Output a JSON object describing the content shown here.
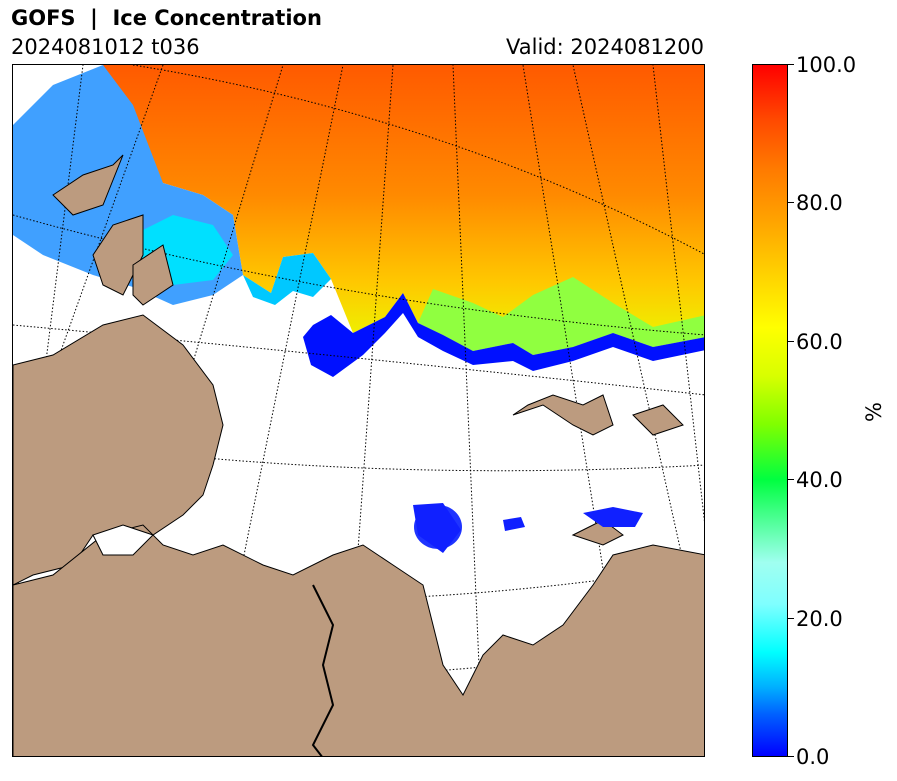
{
  "header": {
    "title": "GOFS  |  Ice Concentration",
    "init_lead": "2024081012 t036",
    "valid": "Valid: 2024081200"
  },
  "colorbar": {
    "unit": "%",
    "ticks": [
      "0.0",
      "20.0",
      "40.0",
      "60.0",
      "80.0",
      "100.0"
    ],
    "min": 0,
    "max": 100
  },
  "colors": {
    "land": "#bc9b7f",
    "ocean_open": "#ffffff",
    "ice_high": "#ff5a00",
    "ice_mid": "#ffe000",
    "ice_low": "#0000ff"
  }
}
